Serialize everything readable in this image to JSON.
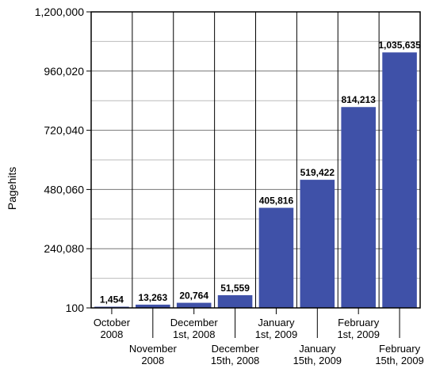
{
  "chart_data": {
    "type": "bar",
    "title": "",
    "xlabel": "",
    "ylabel": "Pagehits",
    "ylim": [
      100,
      1200000
    ],
    "yticks": [
      "100",
      "240,080",
      "480,060",
      "720,040",
      "960,020",
      "1,200,000"
    ],
    "ytick_values": [
      100,
      240080,
      480060,
      720040,
      960020,
      1200000
    ],
    "categories": [
      "October 2008",
      "November 2008",
      "December 1st, 2008",
      "December 15th, 2008",
      "January 1st, 2009",
      "January 15th, 2009",
      "February 1st, 2009",
      "February 15th, 2009"
    ],
    "category_lines": [
      [
        "October",
        "2008"
      ],
      [
        "November",
        "2008"
      ],
      [
        "December",
        "1st, 2008"
      ],
      [
        "December",
        "15th, 2008"
      ],
      [
        "January",
        "1st, 2009"
      ],
      [
        "January",
        "15th, 2009"
      ],
      [
        "February",
        "1st, 2009"
      ],
      [
        "February",
        "15th, 2009"
      ]
    ],
    "values": [
      1454,
      13263,
      20764,
      51559,
      405816,
      519422,
      814213,
      1035635
    ],
    "value_labels": [
      "1,454",
      "13,263",
      "20,764",
      "51,559",
      "405,816",
      "519,422",
      "814,213",
      "1,035,635"
    ],
    "bar_color": "#3f51a8",
    "grid": true
  }
}
